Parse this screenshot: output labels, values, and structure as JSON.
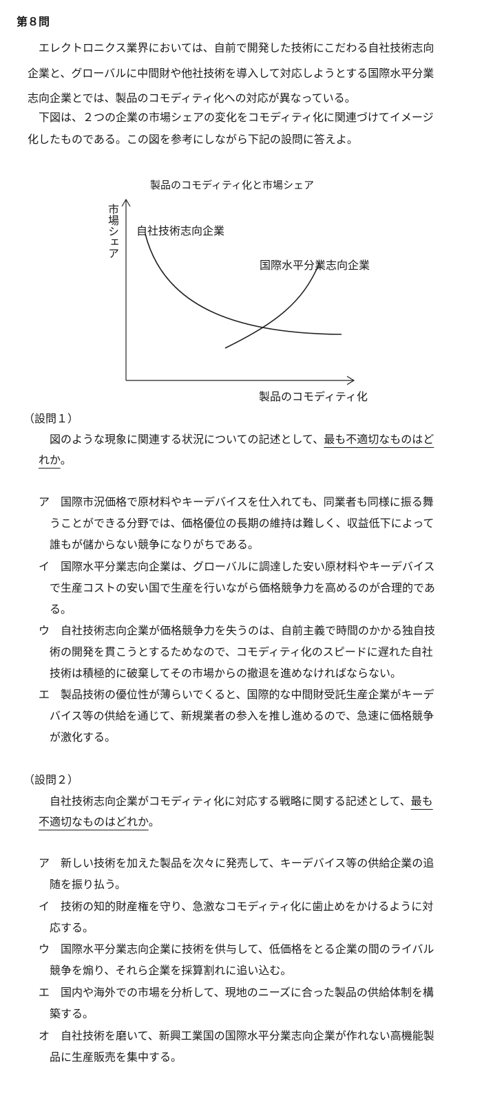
{
  "question": {
    "heading": "第８問",
    "intro_lines": [
      "エレクトロニクス業界においては、自前で開発した技術にこだわる自社技術志向",
      "企業と、グローバルに中間財や他社技術を導入して対応しようとする国際水平分業",
      "志向企業とでは、製品のコモディティ化への対応が異なっている。",
      "下図は、２つの企業の市場シェアの変化をコモディティ化に関連づけてイメージ",
      "化したものである。この図を参考にしながら下記の設問に答えよ。"
    ]
  },
  "chart_data": {
    "type": "line",
    "title": "製品のコモディティ化と市場シェア",
    "ylabel": "市場シェア",
    "xlabel": "製品のコモディティ化",
    "series": [
      {
        "name": "自社技術志向企業",
        "shape": "declining convex curve"
      },
      {
        "name": "国際水平分業志向企業",
        "shape": "rising convex curve"
      }
    ]
  },
  "sub1": {
    "heading": "（設問１）",
    "stem_line1_plain": "図のような現象に関連する状況についての記述として、",
    "stem_line1_underlined": "最も不適切なものはど",
    "stem_line2_underlined": "れか",
    "stem_line2_plain": "。",
    "options": [
      {
        "marker": "ア",
        "lines": [
          "国際市況価格で原材料やキーデバイスを仕入れても、同業者も同様に振る舞",
          "うことができる分野では、価格優位の長期の維持は難しく、収益低下によって",
          "誰もが儲からない競争になりがちである。"
        ]
      },
      {
        "marker": "イ",
        "lines": [
          "国際水平分業志向企業は、グローバルに調達した安い原材料やキーデバイス",
          "で生産コストの安い国で生産を行いながら価格競争力を高めるのが合理的であ",
          "る。"
        ]
      },
      {
        "marker": "ウ",
        "lines": [
          "自社技術志向企業が価格競争力を失うのは、自前主義で時間のかかる独自技",
          "術の開発を貫こうとするためなので、コモディティ化のスピードに遅れた自社",
          "技術は積極的に破棄してその市場からの撤退を進めなければならない。"
        ]
      },
      {
        "marker": "エ",
        "lines": [
          "製品技術の優位性が薄らいでくると、国際的な中間財受託生産企業がキーデ",
          "バイス等の供給を通じて、新規業者の参入を推し進めるので、急速に価格競争",
          "が激化する。"
        ]
      }
    ]
  },
  "sub2": {
    "heading": "（設問２）",
    "stem_line1_plain": "自社技術志向企業がコモディティ化に対応する戦略に関する記述として、",
    "stem_line1_underlined": "最も",
    "stem_line2_underlined": "不適切なものはどれか",
    "stem_line2_plain": "。",
    "options": [
      {
        "marker": "ア",
        "lines": [
          "新しい技術を加えた製品を次々に発売して、キーデバイス等の供給企業の追",
          "随を振り払う。"
        ]
      },
      {
        "marker": "イ",
        "lines": [
          "技術の知的財産権を守り、急激なコモディティ化に歯止めをかけるように対",
          "応する。"
        ]
      },
      {
        "marker": "ウ",
        "lines": [
          "国際水平分業志向企業に技術を供与して、低価格をとる企業の間のライバル",
          "競争を煽り、それら企業を採算割れに追い込む。"
        ]
      },
      {
        "marker": "エ",
        "lines": [
          "国内や海外での市場を分析して、現地のニーズに合った製品の供給体制を構",
          "築する。"
        ]
      },
      {
        "marker": "オ",
        "lines": [
          "自社技術を磨いて、新興工業国の国際水平分業志向企業が作れない高機能製",
          "品に生産販売を集中する。"
        ]
      }
    ]
  }
}
